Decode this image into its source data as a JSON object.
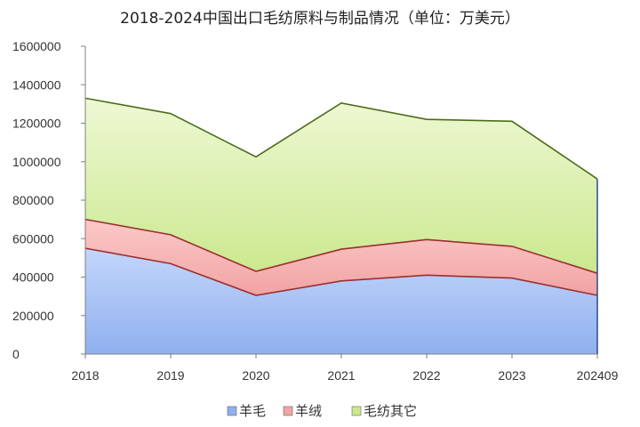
{
  "chart_data": {
    "type": "area",
    "stacked": true,
    "title": "2018-2024中国出口毛纺原料与制品情况（单位：万美元）",
    "xlabel": "",
    "ylabel": "",
    "categories": [
      "2018",
      "2019",
      "2020",
      "2021",
      "2022",
      "2023",
      "202409"
    ],
    "ylim": [
      0,
      1600000
    ],
    "yticks": [
      "0",
      "200000",
      "400000",
      "600000",
      "800000",
      "1000000",
      "1200000",
      "1400000",
      "1600000"
    ],
    "grid": false,
    "legend_position": "bottom",
    "series": [
      {
        "name": "羊毛",
        "values": [
          550000,
          470000,
          305000,
          380000,
          410000,
          395000,
          305000
        ],
        "color": "#a9c4f5"
      },
      {
        "name": "羊绒",
        "values": [
          150000,
          150000,
          125000,
          165000,
          185000,
          165000,
          115000
        ],
        "color": "#f7b4b4"
      },
      {
        "name": "毛纺其它",
        "values": [
          630000,
          630000,
          595000,
          760000,
          625000,
          650000,
          490000
        ],
        "color": "#d8efa6"
      }
    ]
  }
}
